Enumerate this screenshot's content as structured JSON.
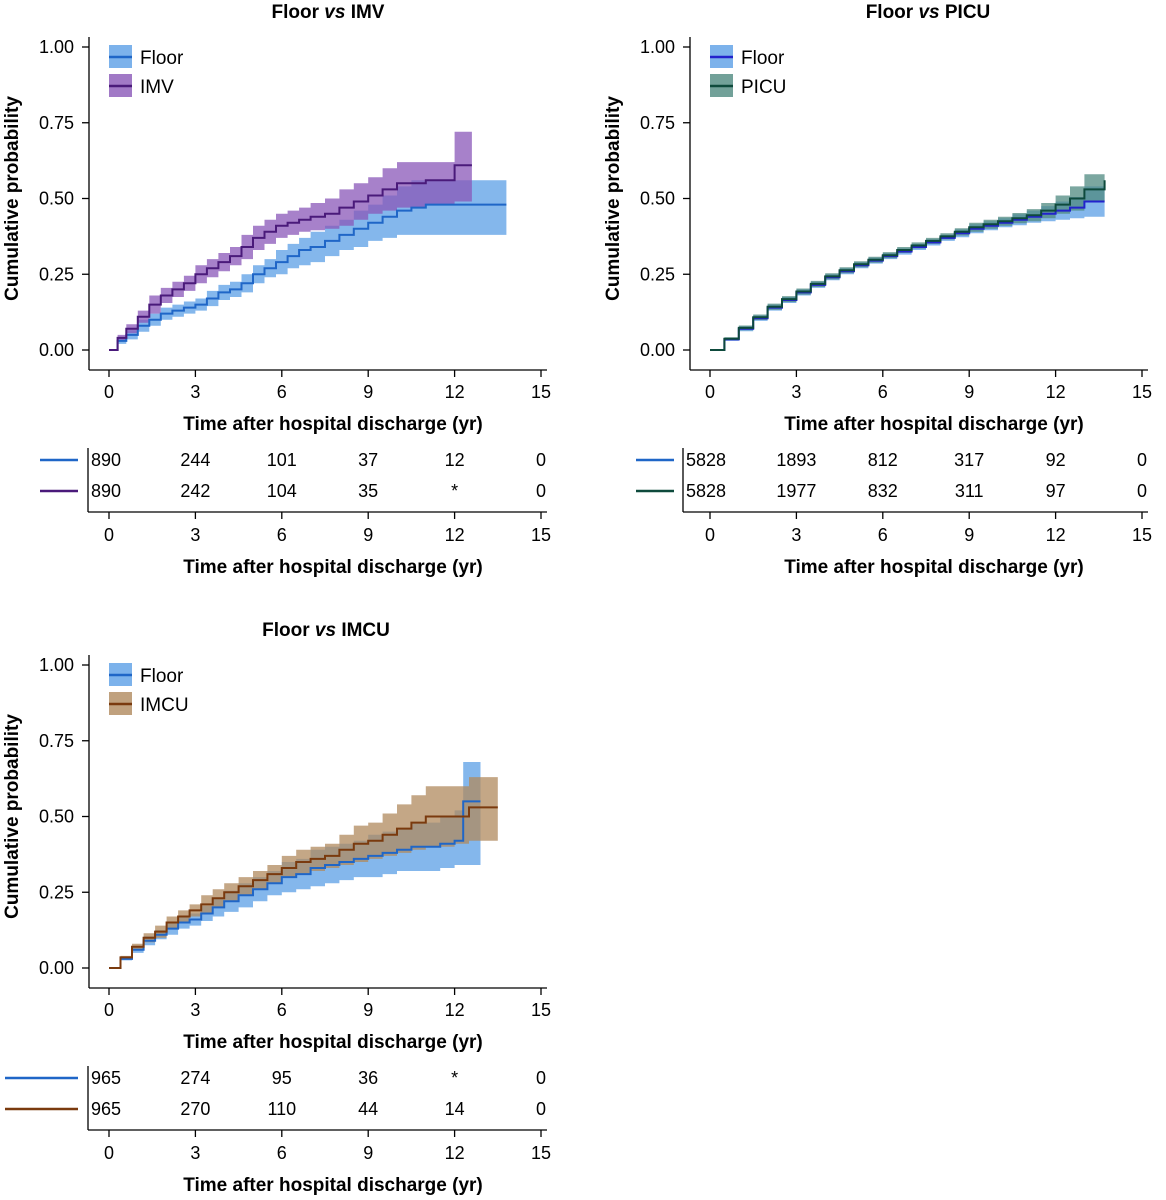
{
  "chart_data": [
    {
      "id": "imv",
      "type": "line",
      "subtype": "kaplan-meier cumulative incidence with confidence bands",
      "title_prefix": "Floor ",
      "title_italic": "vs",
      "title_suffix": " IMV",
      "xlabel": "Time after hospital discharge (yr)",
      "ylabel": "Cumulative probability",
      "xlim": [
        0,
        15
      ],
      "ylim": [
        0,
        1
      ],
      "xticks": [
        "0",
        "3",
        "6",
        "9",
        "12",
        "15"
      ],
      "yticks": [
        "0.00",
        "0.25",
        "0.50",
        "0.75",
        "1.00"
      ],
      "legend_position": "top-left",
      "series": [
        {
          "name": "Floor",
          "line_color": "#1f66c7",
          "band_color": "#5b9fe6",
          "x": [
            0,
            0.3,
            0.6,
            1,
            1.4,
            1.8,
            2.2,
            2.6,
            3,
            3.4,
            3.8,
            4.2,
            4.6,
            5,
            5.4,
            5.8,
            6.2,
            6.6,
            7,
            7.5,
            8,
            8.5,
            9,
            9.5,
            10,
            10.5,
            11,
            11.5,
            12,
            12.5,
            13,
            13.8
          ],
          "y": [
            0,
            0.03,
            0.05,
            0.08,
            0.1,
            0.12,
            0.13,
            0.14,
            0.15,
            0.17,
            0.19,
            0.2,
            0.22,
            0.25,
            0.27,
            0.29,
            0.31,
            0.33,
            0.34,
            0.36,
            0.38,
            0.4,
            0.42,
            0.44,
            0.46,
            0.47,
            0.48,
            0.48,
            0.48,
            0.48,
            0.48,
            0.48
          ],
          "lower": [
            0,
            0.02,
            0.035,
            0.06,
            0.08,
            0.1,
            0.11,
            0.12,
            0.13,
            0.145,
            0.165,
            0.175,
            0.19,
            0.22,
            0.24,
            0.25,
            0.27,
            0.28,
            0.29,
            0.31,
            0.33,
            0.34,
            0.36,
            0.37,
            0.38,
            0.38,
            0.38,
            0.38,
            0.38,
            0.38,
            0.38,
            0.38
          ],
          "upper": [
            0,
            0.04,
            0.065,
            0.1,
            0.12,
            0.14,
            0.15,
            0.16,
            0.17,
            0.195,
            0.215,
            0.225,
            0.25,
            0.28,
            0.3,
            0.33,
            0.35,
            0.37,
            0.39,
            0.41,
            0.43,
            0.46,
            0.48,
            0.51,
            0.54,
            0.56,
            0.56,
            0.56,
            0.56,
            0.56,
            0.56,
            0.56
          ]
        },
        {
          "name": "IMV",
          "line_color": "#4a1a7a",
          "band_color": "#8a57b8",
          "x": [
            0,
            0.3,
            0.6,
            1,
            1.4,
            1.8,
            2.2,
            2.6,
            3,
            3.4,
            3.8,
            4.2,
            4.6,
            5,
            5.4,
            5.8,
            6.2,
            6.6,
            7,
            7.5,
            8,
            8.5,
            9,
            9.5,
            10,
            10.5,
            11,
            11.5,
            12,
            12.6
          ],
          "y": [
            0,
            0.04,
            0.07,
            0.11,
            0.15,
            0.18,
            0.2,
            0.22,
            0.25,
            0.27,
            0.29,
            0.31,
            0.34,
            0.37,
            0.39,
            0.41,
            0.42,
            0.43,
            0.44,
            0.45,
            0.47,
            0.49,
            0.51,
            0.53,
            0.55,
            0.55,
            0.56,
            0.56,
            0.61,
            0.61
          ],
          "lower": [
            0,
            0.03,
            0.055,
            0.09,
            0.12,
            0.155,
            0.175,
            0.195,
            0.22,
            0.24,
            0.26,
            0.28,
            0.3,
            0.33,
            0.35,
            0.37,
            0.38,
            0.39,
            0.395,
            0.4,
            0.41,
            0.43,
            0.45,
            0.46,
            0.47,
            0.47,
            0.48,
            0.48,
            0.49,
            0.49
          ],
          "upper": [
            0,
            0.05,
            0.085,
            0.13,
            0.18,
            0.205,
            0.225,
            0.245,
            0.28,
            0.3,
            0.32,
            0.34,
            0.38,
            0.41,
            0.43,
            0.45,
            0.46,
            0.47,
            0.485,
            0.5,
            0.53,
            0.55,
            0.57,
            0.6,
            0.62,
            0.62,
            0.62,
            0.62,
            0.72,
            0.72
          ]
        }
      ],
      "risk_table": {
        "xlabel": "Time after hospital discharge (yr)",
        "xticks": [
          "0",
          "3",
          "6",
          "9",
          "12",
          "15"
        ],
        "rows": [
          {
            "series": "Floor",
            "color": "#1f66c7",
            "values": [
              "890",
              "244",
              "101",
              "37",
              "12",
              "0"
            ]
          },
          {
            "series": "IMV",
            "color": "#4a1a7a",
            "values": [
              "890",
              "242",
              "104",
              "35",
              "*",
              "0"
            ]
          }
        ]
      }
    },
    {
      "id": "picu",
      "type": "line",
      "subtype": "kaplan-meier cumulative incidence with confidence bands",
      "title_prefix": "Floor ",
      "title_italic": "vs",
      "title_suffix": " PICU",
      "xlabel": "Time after hospital discharge (yr)",
      "ylabel": "Cumulative probability",
      "xlim": [
        0,
        15
      ],
      "ylim": [
        0,
        1
      ],
      "xticks": [
        "0",
        "3",
        "6",
        "9",
        "12",
        "15"
      ],
      "yticks": [
        "0.00",
        "0.25",
        "0.50",
        "0.75",
        "1.00"
      ],
      "legend_position": "top-left",
      "series": [
        {
          "name": "Floor",
          "line_color": "#2222cc",
          "band_color": "#5b9fe6",
          "x": [
            0,
            0.5,
            1,
            1.5,
            2,
            2.5,
            3,
            3.5,
            4,
            4.5,
            5,
            5.5,
            6,
            6.5,
            7,
            7.5,
            8,
            8.5,
            9,
            9.5,
            10,
            10.5,
            11,
            11.5,
            12,
            12.5,
            13,
            13.7
          ],
          "y": [
            0,
            0.035,
            0.07,
            0.105,
            0.14,
            0.165,
            0.19,
            0.215,
            0.24,
            0.26,
            0.28,
            0.295,
            0.31,
            0.325,
            0.34,
            0.355,
            0.37,
            0.385,
            0.4,
            0.41,
            0.42,
            0.43,
            0.44,
            0.45,
            0.46,
            0.47,
            0.49,
            0.49
          ],
          "lower": [
            0,
            0.03,
            0.062,
            0.096,
            0.13,
            0.155,
            0.18,
            0.205,
            0.23,
            0.25,
            0.27,
            0.285,
            0.3,
            0.315,
            0.33,
            0.345,
            0.36,
            0.372,
            0.385,
            0.395,
            0.405,
            0.412,
            0.42,
            0.425,
            0.43,
            0.435,
            0.44,
            0.44
          ],
          "upper": [
            0,
            0.04,
            0.078,
            0.114,
            0.15,
            0.175,
            0.2,
            0.225,
            0.25,
            0.27,
            0.29,
            0.305,
            0.32,
            0.335,
            0.35,
            0.365,
            0.38,
            0.398,
            0.415,
            0.425,
            0.435,
            0.448,
            0.46,
            0.475,
            0.49,
            0.505,
            0.54,
            0.54
          ]
        },
        {
          "name": "PICU",
          "line_color": "#0e4a3c",
          "band_color": "#4f8a80",
          "x": [
            0,
            0.5,
            1,
            1.5,
            2,
            2.5,
            3,
            3.5,
            4,
            4.5,
            5,
            5.5,
            6,
            6.5,
            7,
            7.5,
            8,
            8.5,
            9,
            9.5,
            10,
            10.5,
            11,
            11.5,
            12,
            12.5,
            13,
            13.7
          ],
          "y": [
            0,
            0.037,
            0.073,
            0.108,
            0.143,
            0.168,
            0.193,
            0.218,
            0.243,
            0.263,
            0.283,
            0.298,
            0.313,
            0.33,
            0.345,
            0.36,
            0.375,
            0.39,
            0.405,
            0.415,
            0.425,
            0.435,
            0.445,
            0.46,
            0.48,
            0.5,
            0.53,
            0.56
          ],
          "lower": [
            0,
            0.032,
            0.065,
            0.099,
            0.133,
            0.158,
            0.183,
            0.208,
            0.233,
            0.253,
            0.273,
            0.288,
            0.303,
            0.32,
            0.335,
            0.35,
            0.365,
            0.378,
            0.39,
            0.4,
            0.41,
            0.418,
            0.425,
            0.435,
            0.45,
            0.46,
            0.49,
            0.5
          ],
          "upper": [
            0,
            0.042,
            0.081,
            0.117,
            0.153,
            0.178,
            0.203,
            0.228,
            0.253,
            0.273,
            0.293,
            0.308,
            0.323,
            0.34,
            0.355,
            0.37,
            0.385,
            0.402,
            0.42,
            0.43,
            0.44,
            0.452,
            0.465,
            0.485,
            0.51,
            0.54,
            0.58,
            0.62
          ]
        }
      ],
      "risk_table": {
        "xlabel": "Time after hospital discharge (yr)",
        "xticks": [
          "0",
          "3",
          "6",
          "9",
          "12",
          "15"
        ],
        "rows": [
          {
            "series": "Floor",
            "color": "#1f66c7",
            "values": [
              "5828",
              "1893",
              "812",
              "317",
              "92",
              "0"
            ]
          },
          {
            "series": "PICU",
            "color": "#0e4a3c",
            "values": [
              "5828",
              "1977",
              "832",
              "311",
              "97",
              "0"
            ]
          }
        ]
      }
    },
    {
      "id": "imcu",
      "type": "line",
      "subtype": "kaplan-meier cumulative incidence with confidence bands",
      "title_prefix": "Floor ",
      "title_italic": "vs",
      "title_suffix": " IMCU",
      "xlabel": "Time after hospital discharge (yr)",
      "ylabel": "Cumulative probability",
      "xlim": [
        0,
        15
      ],
      "ylim": [
        0,
        1
      ],
      "xticks": [
        "0",
        "3",
        "6",
        "9",
        "12",
        "15"
      ],
      "yticks": [
        "0.00",
        "0.25",
        "0.50",
        "0.75",
        "1.00"
      ],
      "legend_position": "top-left",
      "series": [
        {
          "name": "Floor",
          "line_color": "#1f66c7",
          "band_color": "#5b9fe6",
          "x": [
            0,
            0.4,
            0.8,
            1.2,
            1.6,
            2,
            2.4,
            2.8,
            3.2,
            3.6,
            4,
            4.5,
            5,
            5.5,
            6,
            6.5,
            7,
            7.5,
            8,
            8.5,
            9,
            9.5,
            10,
            10.5,
            11,
            11.5,
            12,
            12.3,
            12.9
          ],
          "y": [
            0,
            0.03,
            0.06,
            0.09,
            0.11,
            0.13,
            0.15,
            0.16,
            0.18,
            0.2,
            0.22,
            0.24,
            0.26,
            0.28,
            0.3,
            0.31,
            0.33,
            0.34,
            0.35,
            0.36,
            0.37,
            0.38,
            0.39,
            0.4,
            0.4,
            0.41,
            0.42,
            0.55,
            0.55
          ],
          "lower": [
            0,
            0.025,
            0.05,
            0.075,
            0.095,
            0.11,
            0.13,
            0.14,
            0.155,
            0.17,
            0.185,
            0.2,
            0.22,
            0.24,
            0.25,
            0.26,
            0.27,
            0.28,
            0.29,
            0.3,
            0.3,
            0.31,
            0.32,
            0.32,
            0.32,
            0.33,
            0.34,
            0.34,
            0.34
          ],
          "upper": [
            0,
            0.035,
            0.07,
            0.105,
            0.125,
            0.15,
            0.17,
            0.18,
            0.205,
            0.23,
            0.255,
            0.28,
            0.3,
            0.32,
            0.35,
            0.36,
            0.39,
            0.4,
            0.41,
            0.42,
            0.44,
            0.45,
            0.46,
            0.48,
            0.48,
            0.5,
            0.52,
            0.68,
            0.68
          ]
        },
        {
          "name": "IMCU",
          "line_color": "#7a3a0e",
          "band_color": "#b08a5e",
          "x": [
            0,
            0.4,
            0.8,
            1.2,
            1.6,
            2,
            2.4,
            2.8,
            3.2,
            3.6,
            4,
            4.5,
            5,
            5.5,
            6,
            6.5,
            7,
            7.5,
            8,
            8.5,
            9,
            9.5,
            10,
            10.5,
            11,
            11.5,
            12,
            12.5,
            13,
            13.5
          ],
          "y": [
            0,
            0.035,
            0.07,
            0.1,
            0.12,
            0.15,
            0.17,
            0.19,
            0.21,
            0.23,
            0.25,
            0.27,
            0.29,
            0.31,
            0.33,
            0.35,
            0.36,
            0.37,
            0.39,
            0.41,
            0.42,
            0.44,
            0.46,
            0.48,
            0.5,
            0.5,
            0.5,
            0.53,
            0.53,
            0.53
          ],
          "lower": [
            0,
            0.03,
            0.06,
            0.085,
            0.1,
            0.13,
            0.15,
            0.17,
            0.18,
            0.2,
            0.22,
            0.24,
            0.26,
            0.28,
            0.3,
            0.31,
            0.32,
            0.33,
            0.34,
            0.35,
            0.36,
            0.37,
            0.38,
            0.39,
            0.4,
            0.4,
            0.41,
            0.42,
            0.42,
            0.42
          ],
          "upper": [
            0,
            0.04,
            0.08,
            0.115,
            0.14,
            0.17,
            0.19,
            0.21,
            0.24,
            0.26,
            0.28,
            0.3,
            0.32,
            0.34,
            0.37,
            0.39,
            0.4,
            0.41,
            0.44,
            0.47,
            0.48,
            0.51,
            0.54,
            0.57,
            0.6,
            0.6,
            0.6,
            0.63,
            0.63,
            0.63
          ]
        }
      ],
      "risk_table": {
        "xlabel": "Time after hospital discharge (yr)",
        "xticks": [
          "0",
          "3",
          "6",
          "9",
          "12",
          "15"
        ],
        "rows": [
          {
            "series": "Floor",
            "color": "#1f66c7",
            "values": [
              "965",
              "274",
              "95",
              "36",
              "*",
              "0"
            ]
          },
          {
            "series": "IMCU",
            "color": "#7a3a0e",
            "values": [
              "965",
              "270",
              "110",
              "44",
              "14",
              "0"
            ]
          }
        ]
      }
    }
  ]
}
